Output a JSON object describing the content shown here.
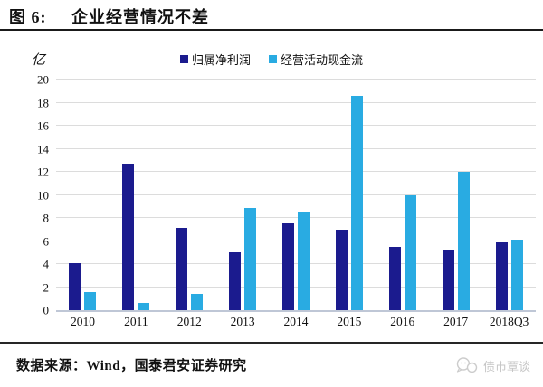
{
  "header": {
    "figure_label": "图 6:",
    "title": "企业经营情况不差"
  },
  "chart_data": {
    "type": "bar",
    "title": "企业经营情况不差",
    "unit_label": "亿",
    "categories": [
      "2010",
      "2011",
      "2012",
      "2013",
      "2014",
      "2015",
      "2016",
      "2017",
      "2018Q3"
    ],
    "series": [
      {
        "name": "归属净利润",
        "color": "#1b1b8e",
        "values": [
          4.1,
          12.7,
          7.1,
          5.0,
          7.5,
          7.0,
          5.5,
          5.2,
          5.9
        ]
      },
      {
        "name": "经营活动现金流",
        "color": "#29abe2",
        "values": [
          1.6,
          0.6,
          1.4,
          8.9,
          8.5,
          18.6,
          10.0,
          12.0,
          6.1
        ]
      }
    ],
    "ylim": [
      0,
      20
    ],
    "ytick_step": 2,
    "xlabel": "",
    "ylabel": "亿",
    "grid": "horizontal",
    "legend_position": "top-center"
  },
  "footer": {
    "source": "数据来源：Wind，国泰君安证券研究",
    "watermark": "债市覃谈"
  },
  "colors": {
    "grid": "#dcdcdc",
    "axis": "#bfc7d6",
    "rule": "#1a1a1a",
    "watermark": "#c6c6c6"
  }
}
